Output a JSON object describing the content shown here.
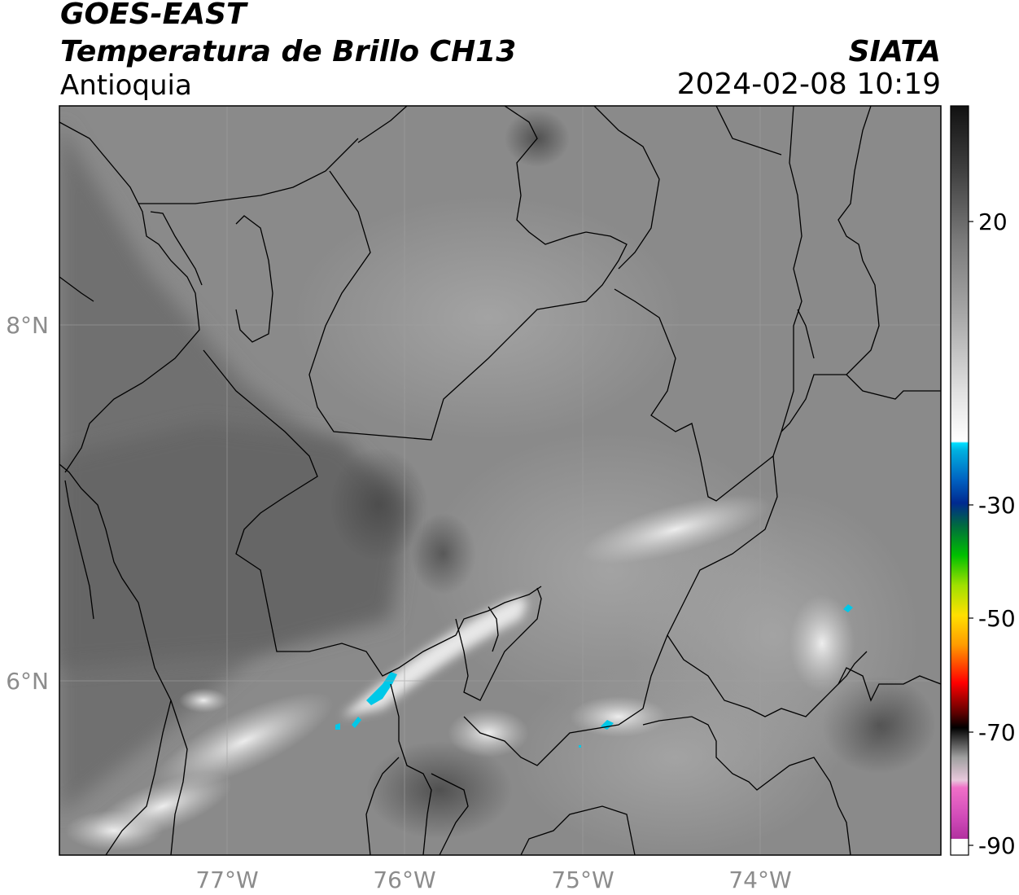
{
  "header": {
    "satellite": "GOES-EAST",
    "product": "Temperatura de Brillo CH13",
    "region": "Antioquia",
    "organization": "SIATA",
    "datetime": "2024-02-08 10:19"
  },
  "map": {
    "lon_ticks": [
      "77°W",
      "76°W",
      "75°W",
      "74°W"
    ],
    "lat_ticks": [
      "8°N",
      "6°N"
    ],
    "features": [
      "department-borders",
      "coastline",
      "cold-cloud-tops"
    ]
  },
  "colorbar": {
    "tick_labels": [
      "20",
      "-30",
      "-50",
      "-70",
      "-90"
    ],
    "colors": {
      "warm_dark": "#111111",
      "gray_mid": "#7a7a7a",
      "white": "#ffffff",
      "cyan": "#00d8ff",
      "blue": "#003a9a",
      "green": "#00c000",
      "yellow": "#e6e600",
      "orange": "#ff9a00",
      "red": "#ff0000",
      "black": "#000000",
      "pink": "#f070c8",
      "purple": "#a02090"
    }
  }
}
